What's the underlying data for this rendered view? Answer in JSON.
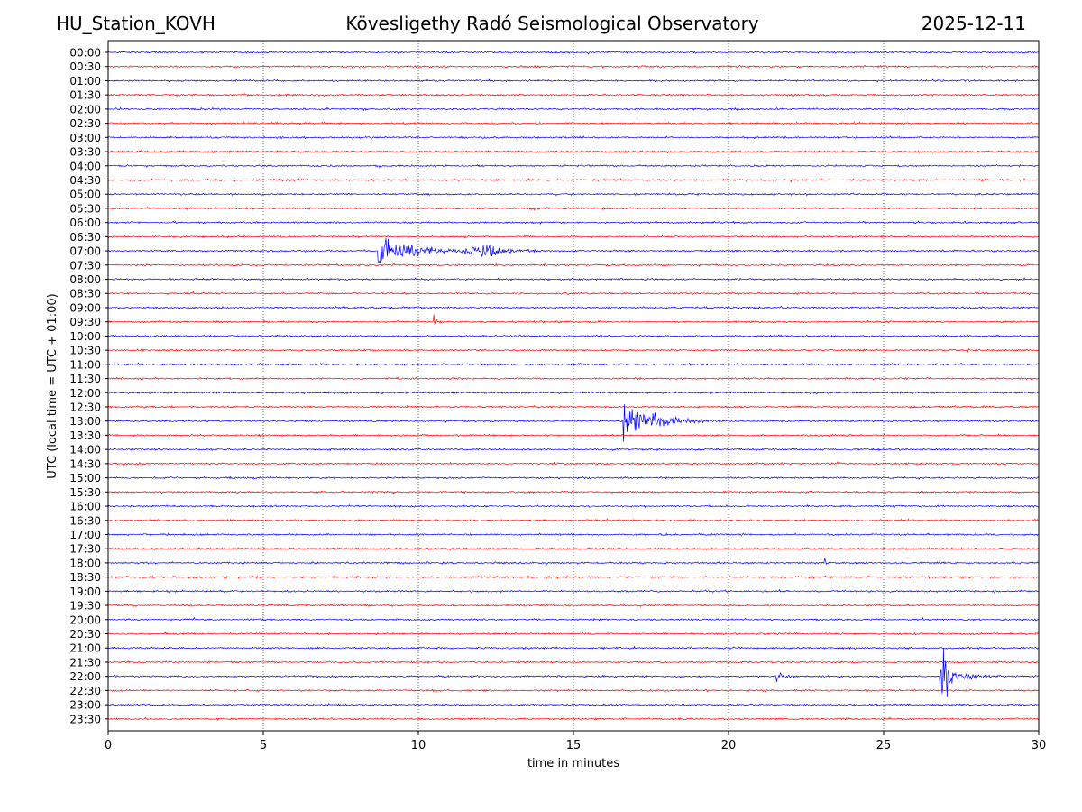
{
  "header": {
    "station": "HU_Station_KOVH",
    "observatory": "Kövesligethy Radó Seismological Observatory",
    "date": "2025-12-11"
  },
  "chart_data": {
    "type": "line",
    "title": "Kövesligethy Radó Seismological Observatory",
    "xlabel": "time in minutes",
    "ylabel": "UTC (local time = UTC + 01:00)",
    "xlim": [
      0,
      30
    ],
    "x_ticks": [
      "0",
      "5",
      "10",
      "15",
      "20",
      "25",
      "30"
    ],
    "grid": "vertical dotted lines at each x tick",
    "colors": {
      "even_trace": "#0000ff",
      "odd_trace": "#ff0000",
      "grid": "#000000"
    },
    "rows": [
      "00:00",
      "00:30",
      "01:00",
      "01:30",
      "02:00",
      "02:30",
      "03:00",
      "03:30",
      "04:00",
      "04:30",
      "05:00",
      "05:30",
      "06:00",
      "06:30",
      "07:00",
      "07:30",
      "08:00",
      "08:30",
      "09:00",
      "09:30",
      "10:00",
      "10:30",
      "11:00",
      "11:30",
      "12:00",
      "12:30",
      "13:00",
      "13:30",
      "14:00",
      "14:30",
      "15:00",
      "15:30",
      "16:00",
      "16:30",
      "17:00",
      "17:30",
      "18:00",
      "18:30",
      "19:00",
      "19:30",
      "20:00",
      "20:30",
      "21:00",
      "21:30",
      "22:00",
      "22:30",
      "23:00",
      "23:30"
    ],
    "events": [
      {
        "row": "07:00",
        "start_min": 8.7,
        "end_min": 14.3,
        "peak_amp": 20,
        "coda_amp": 7,
        "coda_min": 12.2
      },
      {
        "row": "09:30",
        "start_min": 10.5,
        "end_min": 11.1,
        "peak_amp": 22,
        "coda_amp": 3
      },
      {
        "row": "10:30",
        "start_min": 27.7,
        "end_min": 28.0,
        "peak_amp": 6,
        "coda_amp": 1
      },
      {
        "row": "12:00",
        "start_min": 8.8,
        "end_min": 9.2,
        "peak_amp": 5,
        "coda_amp": 1
      },
      {
        "row": "12:00",
        "start_min": 10.8,
        "end_min": 11.0,
        "peak_amp": 3,
        "coda_amp": 1
      },
      {
        "row": "13:00",
        "start_min": 16.6,
        "end_min": 19.9,
        "peak_amp": 32,
        "coda_amp": 7,
        "coda_min": 17.6
      },
      {
        "row": "18:00",
        "start_min": 23.1,
        "end_min": 23.5,
        "peak_amp": 6,
        "coda_amp": 1
      },
      {
        "row": "22:00",
        "start_min": 21.5,
        "end_min": 22.4,
        "peak_amp": 10,
        "coda_amp": 4
      },
      {
        "row": "22:00",
        "start_min": 26.8,
        "end_min": 29.2,
        "peak_amp": 50,
        "coda_amp": 5
      }
    ]
  }
}
